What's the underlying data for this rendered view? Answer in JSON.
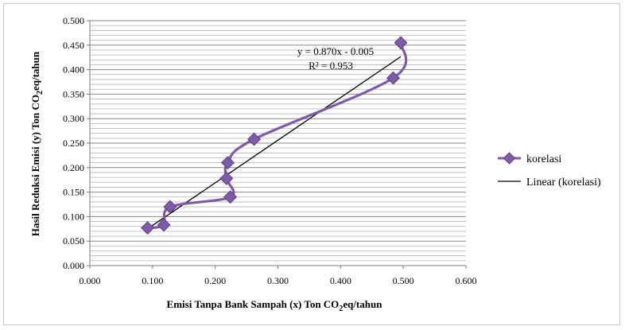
{
  "chart_data": {
    "type": "scatter",
    "title": "",
    "xlabel_main": "Emisi Tanpa Bank Sampah (x) Ton CO",
    "xlabel_sub": "2",
    "xlabel_tail": "eq/tahun",
    "ylabel_main": "Hasil Reduksi Emisi (y) Ton CO",
    "ylabel_sub": "2",
    "ylabel_tail": "eq/tahun",
    "xlim": [
      0,
      0.6
    ],
    "ylim": [
      0,
      0.5
    ],
    "x_ticks": [
      "0.000",
      "0.100",
      "0.200",
      "0.300",
      "0.400",
      "0.500",
      "0.600"
    ],
    "y_ticks": [
      "0.000",
      "0.050",
      "0.100",
      "0.150",
      "0.200",
      "0.250",
      "0.300",
      "0.350",
      "0.400",
      "0.450",
      "0.500"
    ],
    "grid": true,
    "legend_position": "right",
    "series": [
      {
        "name": "korelasi",
        "color": "#7d5ba6",
        "marker": "diamond",
        "x": [
          0.092,
          0.118,
          0.128,
          0.224,
          0.218,
          0.22,
          0.262,
          0.484,
          0.496
        ],
        "y": [
          0.077,
          0.083,
          0.12,
          0.14,
          0.178,
          0.21,
          0.258,
          0.383,
          0.455
        ]
      }
    ],
    "trendline": {
      "name": "Linear (korelasi)",
      "color": "#000000",
      "slope": 0.87,
      "intercept": -0.005,
      "x_range": [
        0.092,
        0.496
      ],
      "equation": "y = 0.870x - 0.005",
      "r2_label": "R² = 0.953"
    }
  }
}
